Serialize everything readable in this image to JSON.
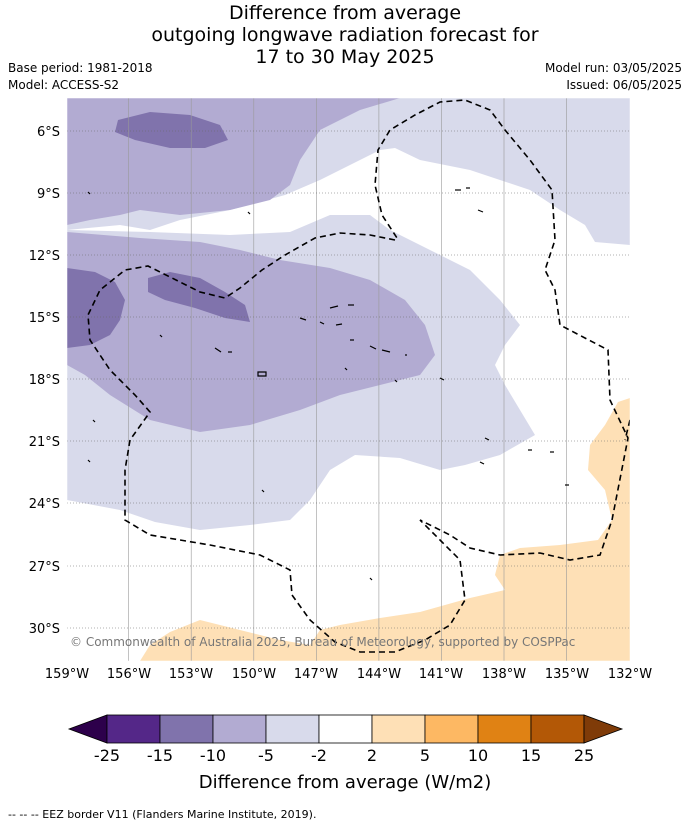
{
  "title": {
    "line1": "Difference from average",
    "line2": "outgoing longwave radiation forecast for",
    "line3": "17 to 30 May 2025"
  },
  "meta": {
    "base_period": "Base period: 1981-2018",
    "model": "Model: ACCESS-S2",
    "model_run": "Model run: 03/05/2025",
    "issued": "Issued: 06/05/2025"
  },
  "map": {
    "lat_ticks": [
      "6°S",
      "9°S",
      "12°S",
      "15°S",
      "18°S",
      "21°S",
      "24°S",
      "27°S",
      "30°S"
    ],
    "lon_ticks": [
      "159°W",
      "156°W",
      "153°W",
      "150°W",
      "147°W",
      "144°W",
      "141°W",
      "138°W",
      "135°W",
      "132°W"
    ],
    "copyright": "© Commonwealth of Australia 2025, Bureau of Meteorology, supported by COSPPac"
  },
  "legend": {
    "ticks": [
      "-25",
      "-15",
      "-10",
      "-5",
      "-2",
      "2",
      "5",
      "10",
      "15",
      "25"
    ],
    "colors": [
      "#2d004b",
      "#542788",
      "#8073ac",
      "#b2abd2",
      "#d8daeb",
      "#ffffff",
      "#fee0b6",
      "#fdb863",
      "#e08214",
      "#b35806",
      "#7f3b08"
    ],
    "title": "Difference from average (W/m2)"
  },
  "footer": "--  --  -- EEZ border V11 (Flanders Marine Institute, 2019)."
}
